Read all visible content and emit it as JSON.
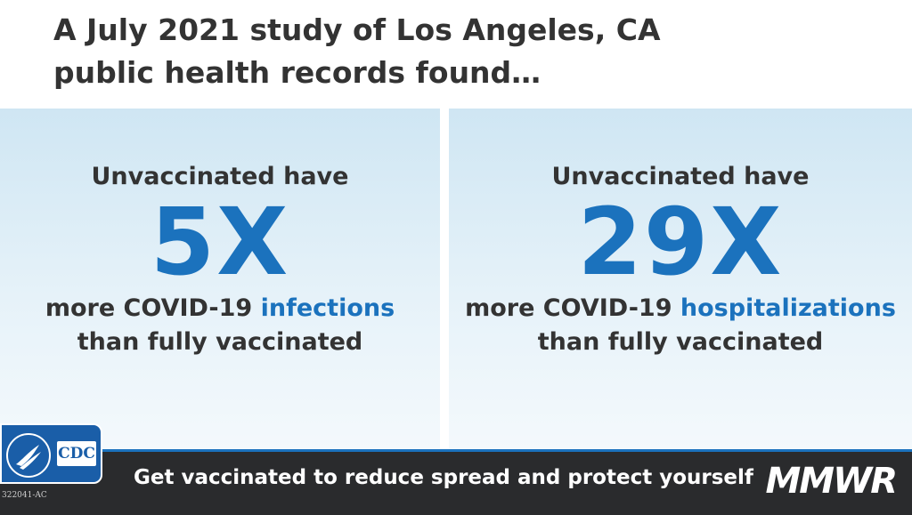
{
  "header": {
    "title_lines": [
      "A July 2021 study of Los Angeles, CA",
      "public health records found…"
    ]
  },
  "panels": [
    {
      "intro": "Unvaccinated have",
      "figure": "5X",
      "lead": "more COVID-19",
      "highlight": "infections",
      "tail": "than fully vaccinated"
    },
    {
      "intro": "Unvaccinated have",
      "figure": "29X",
      "lead": "more COVID-19",
      "highlight": "hospitalizations",
      "tail": "than fully vaccinated"
    }
  ],
  "footer": {
    "message": "Get vaccinated to reduce spread and protect yourself",
    "brand": "MMWR",
    "logo": "CDC",
    "code": "322041-AC"
  }
}
